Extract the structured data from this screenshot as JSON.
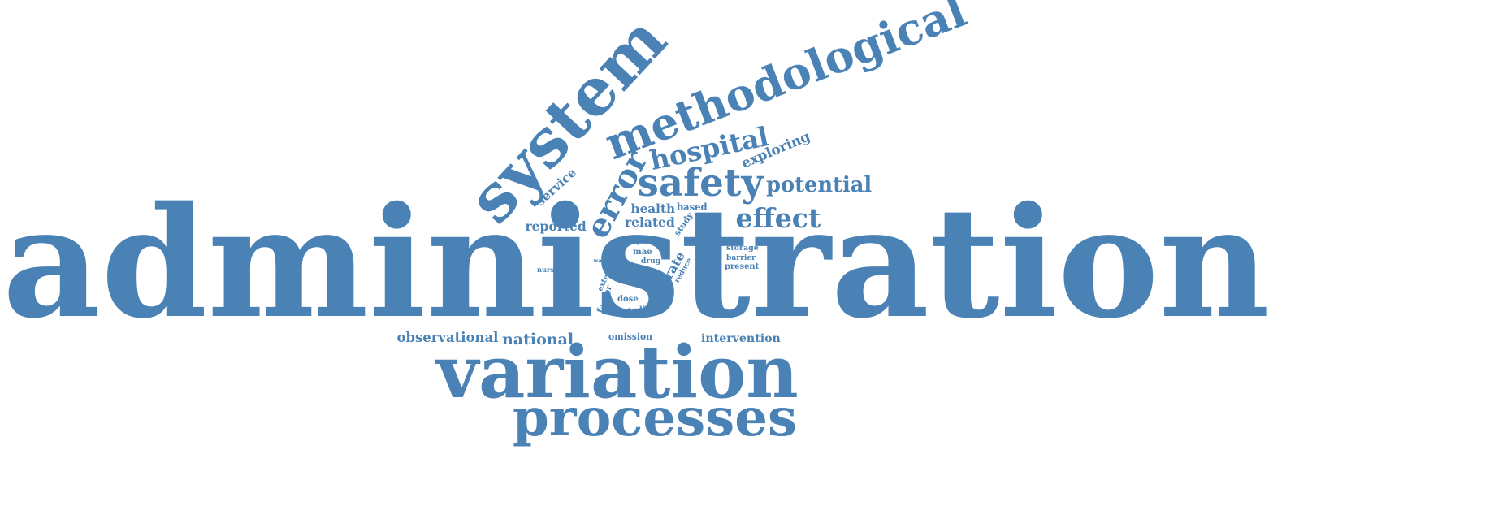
{
  "accent_color": "#4a82b6",
  "background_color": "#ffffff",
  "words": [
    {
      "key": "administration",
      "text": "administration"
    },
    {
      "key": "variation",
      "text": "variation"
    },
    {
      "key": "processes",
      "text": "processes"
    },
    {
      "key": "system",
      "text": "system"
    },
    {
      "key": "methodological",
      "text": "methodological"
    },
    {
      "key": "hospital",
      "text": "hospital"
    },
    {
      "key": "error",
      "text": "error"
    },
    {
      "key": "safety",
      "text": "safety"
    },
    {
      "key": "potential",
      "text": "potential"
    },
    {
      "key": "effect",
      "text": "effect"
    },
    {
      "key": "exploring",
      "text": "exploring"
    },
    {
      "key": "service",
      "text": "service"
    },
    {
      "key": "reported",
      "text": "reported"
    },
    {
      "key": "health",
      "text": "health"
    },
    {
      "key": "based",
      "text": "based"
    },
    {
      "key": "related",
      "text": "related"
    },
    {
      "key": "study",
      "text": "study"
    },
    {
      "key": "rate",
      "text": "rate"
    },
    {
      "key": "reduce",
      "text": "reduce"
    },
    {
      "key": "proc",
      "text": "proc"
    },
    {
      "key": "mae",
      "text": "mae"
    },
    {
      "key": "drug",
      "text": "drug"
    },
    {
      "key": "ward",
      "text": "ward"
    },
    {
      "key": "extent",
      "text": "extent"
    },
    {
      "key": "factor",
      "text": "factor"
    },
    {
      "key": "dose",
      "text": "dose"
    },
    {
      "key": "studies",
      "text": "studies"
    },
    {
      "key": "nurse",
      "text": "nurse"
    },
    {
      "key": "storage",
      "text": "storage"
    },
    {
      "key": "barrier",
      "text": "barrier"
    },
    {
      "key": "present",
      "text": "present"
    },
    {
      "key": "observational",
      "text": "observational"
    },
    {
      "key": "national",
      "text": "national"
    },
    {
      "key": "omission",
      "text": "omission"
    },
    {
      "key": "intervention",
      "text": "intervention"
    }
  ]
}
